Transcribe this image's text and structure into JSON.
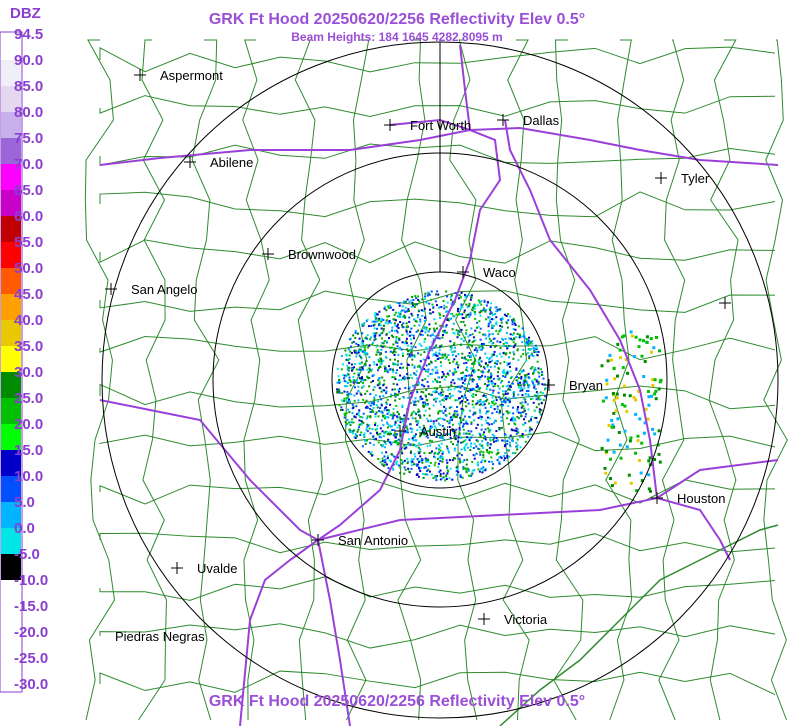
{
  "header": {
    "title": "GRK Ft Hood 20250620/2256 Reflectivity Elev 0.5°",
    "subtitle": "Beam Heights: 184 1645 4282 8095 m"
  },
  "footer": {
    "title": "GRK Ft Hood 20250620/2256 Reflectivity Elev 0.5°"
  },
  "colorbar": {
    "unit": "DBZ",
    "labels": [
      "94.5",
      "90.0",
      "85.0",
      "80.0",
      "75.0",
      "70.0",
      "65.0",
      "60.0",
      "55.0",
      "50.0",
      "45.0",
      "40.0",
      "35.0",
      "30.0",
      "25.0",
      "20.0",
      "15.0",
      "10.0",
      "5.0",
      "0.0",
      "-5.0",
      "-10.0",
      "-15.0",
      "-20.0",
      "-25.0",
      "-30.0"
    ],
    "colors": [
      "#ffffff",
      "#f0eef6",
      "#e4d8f0",
      "#c8b0ec",
      "#9a66d8",
      "#ff00ff",
      "#c800c8",
      "#c00000",
      "#ff0000",
      "#ff5a00",
      "#ffa000",
      "#e8c800",
      "#ffff00",
      "#008c00",
      "#00c000",
      "#00ff00",
      "#0000c8",
      "#0050ff",
      "#00b4ff",
      "#00e6e6",
      "#000000",
      "#ffffff",
      "#ffffff",
      "#ffffff",
      "#ffffff"
    ]
  },
  "cities": [
    {
      "label": "Aspermont"
    },
    {
      "label": "Fort Worth"
    },
    {
      "label": "Dallas"
    },
    {
      "label": "Abilene"
    },
    {
      "label": "Tyler"
    },
    {
      "label": "Brownwood"
    },
    {
      "label": "Waco"
    },
    {
      "label": "San Angelo"
    },
    {
      "label": "Bryan"
    },
    {
      "label": "Austin"
    },
    {
      "label": "Houston"
    },
    {
      "label": "San Antonio"
    },
    {
      "label": "Uvalde"
    },
    {
      "label": "Victoria"
    },
    {
      "label": "Piedras Negras"
    }
  ]
}
